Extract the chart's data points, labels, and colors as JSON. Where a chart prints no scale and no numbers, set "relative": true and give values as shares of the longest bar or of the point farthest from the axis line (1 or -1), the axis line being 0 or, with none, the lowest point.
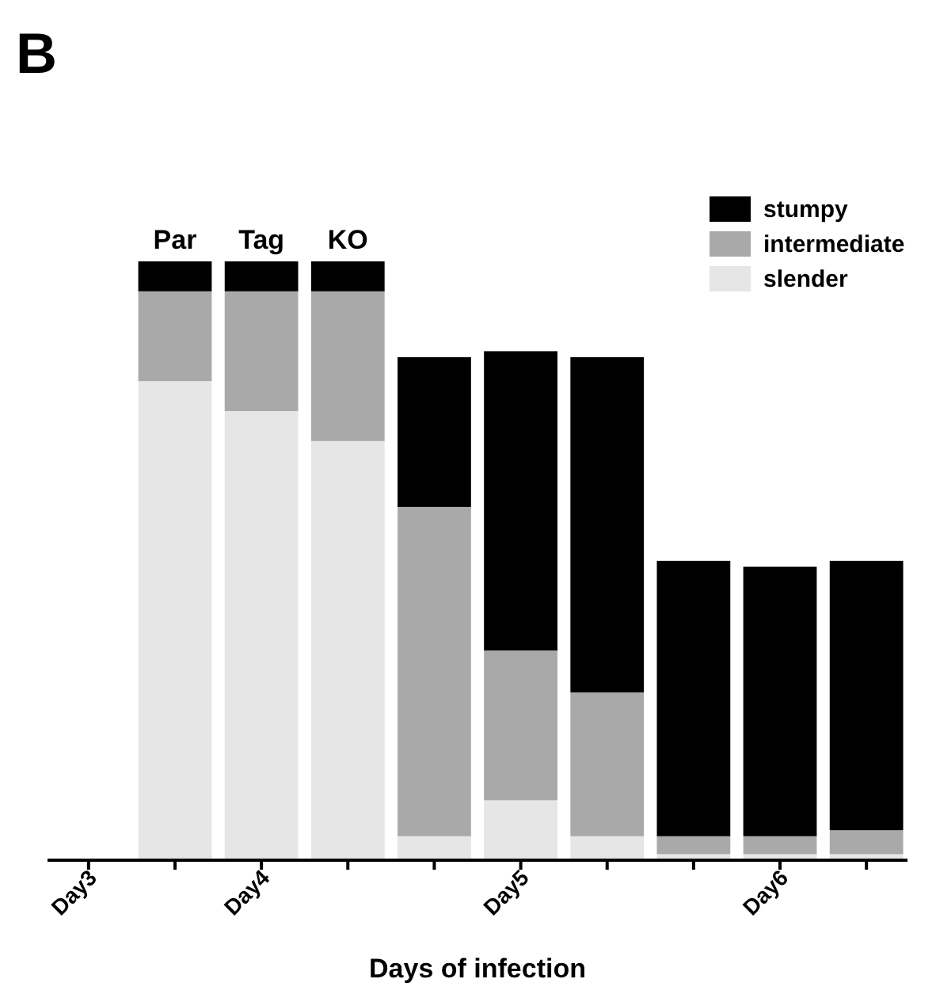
{
  "chart_data": {
    "type": "bar",
    "title": "B",
    "xlabel": "Days of infection",
    "stacked": true,
    "relative": true,
    "legend": "top right",
    "categories": [
      "Day3",
      null,
      "Day4",
      null,
      null,
      "Day5",
      null,
      null,
      "Day6",
      null
    ],
    "annotations": [
      "Par",
      "Tag",
      "KO"
    ],
    "series": [
      {
        "name": "slender",
        "color": "#e6e6e6",
        "values": [
          null,
          0.8,
          0.75,
          0.7,
          0.04,
          0.1,
          0.04,
          0.01,
          0.01,
          0.01
        ]
      },
      {
        "name": "intermediate",
        "color": "#a9a9a9",
        "values": [
          null,
          0.15,
          0.2,
          0.25,
          0.55,
          0.25,
          0.24,
          0.03,
          0.03,
          0.04
        ]
      },
      {
        "name": "stumpy",
        "color": "#000000",
        "values": [
          null,
          0.05,
          0.05,
          0.05,
          0.25,
          0.5,
          0.56,
          0.46,
          0.45,
          0.45
        ]
      }
    ]
  }
}
